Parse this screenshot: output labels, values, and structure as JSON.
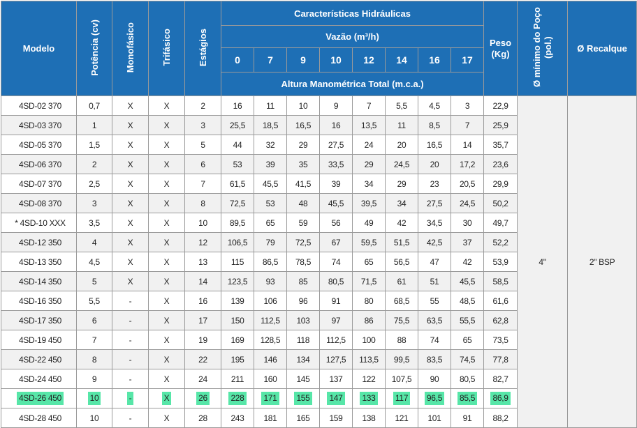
{
  "headers": {
    "modelo": "Modelo",
    "potencia": "Potência (cv)",
    "monofasico": "Monofásico",
    "trifasico": "Trifásico",
    "estagios": "Estágios",
    "caracteristicas": "Características Hidráulicas",
    "vazao": "Vazão (m³/h)",
    "flows": [
      "0",
      "7",
      "9",
      "10",
      "12",
      "14",
      "16",
      "17"
    ],
    "altura": "Altura Manométrica Total (m.c.a.)",
    "peso_l1": "Peso",
    "peso_l2": "(Kg)",
    "poco_l1": "Ø mínimo do Poço",
    "poco_l2": "(pol.)",
    "recalque": "Ø Recalque"
  },
  "merged": {
    "poco": "4\"",
    "recalque": "2\" BSP"
  },
  "highlight_color": "#57e6a8",
  "header_color": "#1e6fb5",
  "rows": [
    {
      "model": "4SD-02 370",
      "cv": "0,7",
      "mono": "X",
      "tri": "X",
      "stages": "2",
      "h": [
        "16",
        "11",
        "10",
        "9",
        "7",
        "5,5",
        "4,5",
        "3"
      ],
      "peso": "22,9"
    },
    {
      "model": "4SD-03 370",
      "cv": "1",
      "mono": "X",
      "tri": "X",
      "stages": "3",
      "h": [
        "25,5",
        "18,5",
        "16,5",
        "16",
        "13,5",
        "11",
        "8,5",
        "7"
      ],
      "peso": "25,9"
    },
    {
      "model": "4SD-05 370",
      "cv": "1,5",
      "mono": "X",
      "tri": "X",
      "stages": "5",
      "h": [
        "44",
        "32",
        "29",
        "27,5",
        "24",
        "20",
        "16,5",
        "14"
      ],
      "peso": "35,7"
    },
    {
      "model": "4SD-06 370",
      "cv": "2",
      "mono": "X",
      "tri": "X",
      "stages": "6",
      "h": [
        "53",
        "39",
        "35",
        "33,5",
        "29",
        "24,5",
        "20",
        "17,2"
      ],
      "peso": "23,6"
    },
    {
      "model": "4SD-07 370",
      "cv": "2,5",
      "mono": "X",
      "tri": "X",
      "stages": "7",
      "h": [
        "61,5",
        "45,5",
        "41,5",
        "39",
        "34",
        "29",
        "23",
        "20,5"
      ],
      "peso": "29,9"
    },
    {
      "model": "4SD-08 370",
      "cv": "3",
      "mono": "X",
      "tri": "X",
      "stages": "8",
      "h": [
        "72,5",
        "53",
        "48",
        "45,5",
        "39,5",
        "34",
        "27,5",
        "24,5"
      ],
      "peso": "50,2"
    },
    {
      "model": "* 4SD-10 XXX",
      "cv": "3,5",
      "mono": "X",
      "tri": "X",
      "stages": "10",
      "h": [
        "89,5",
        "65",
        "59",
        "56",
        "49",
        "42",
        "34,5",
        "30"
      ],
      "peso": "49,7"
    },
    {
      "model": "4SD-12 350",
      "cv": "4",
      "mono": "X",
      "tri": "X",
      "stages": "12",
      "h": [
        "106,5",
        "79",
        "72,5",
        "67",
        "59,5",
        "51,5",
        "42,5",
        "37"
      ],
      "peso": "52,2"
    },
    {
      "model": "4SD-13 350",
      "cv": "4,5",
      "mono": "X",
      "tri": "X",
      "stages": "13",
      "h": [
        "115",
        "86,5",
        "78,5",
        "74",
        "65",
        "56,5",
        "47",
        "42"
      ],
      "peso": "53,9"
    },
    {
      "model": "4SD-14 350",
      "cv": "5",
      "mono": "X",
      "tri": "X",
      "stages": "14",
      "h": [
        "123,5",
        "93",
        "85",
        "80,5",
        "71,5",
        "61",
        "51",
        "45,5"
      ],
      "peso": "58,5"
    },
    {
      "model": "4SD-16 350",
      "cv": "5,5",
      "mono": "-",
      "tri": "X",
      "stages": "16",
      "h": [
        "139",
        "106",
        "96",
        "91",
        "80",
        "68,5",
        "55",
        "48,5"
      ],
      "peso": "61,6"
    },
    {
      "model": "4SD-17 350",
      "cv": "6",
      "mono": "-",
      "tri": "X",
      "stages": "17",
      "h": [
        "150",
        "112,5",
        "103",
        "97",
        "86",
        "75,5",
        "63,5",
        "55,5"
      ],
      "peso": "62,8"
    },
    {
      "model": "4SD-19 450",
      "cv": "7",
      "mono": "-",
      "tri": "X",
      "stages": "19",
      "h": [
        "169",
        "128,5",
        "118",
        "112,5",
        "100",
        "88",
        "74",
        "65"
      ],
      "peso": "73,5"
    },
    {
      "model": "4SD-22 450",
      "cv": "8",
      "mono": "-",
      "tri": "X",
      "stages": "22",
      "h": [
        "195",
        "146",
        "134",
        "127,5",
        "113,5",
        "99,5",
        "83,5",
        "74,5"
      ],
      "peso": "77,8"
    },
    {
      "model": "4SD-24 450",
      "cv": "9",
      "mono": "-",
      "tri": "X",
      "stages": "24",
      "h": [
        "211",
        "160",
        "145",
        "137",
        "122",
        "107,5",
        "90",
        "80,5"
      ],
      "peso": "82,7"
    },
    {
      "model": "4SD-26 450",
      "cv": "10",
      "mono": "-",
      "tri": "X",
      "stages": "26",
      "h": [
        "228",
        "171",
        "155",
        "147",
        "133",
        "117",
        "96,5",
        "85,5"
      ],
      "peso": "86,9",
      "highlighted": true
    },
    {
      "model": "4SD-28 450",
      "cv": "10",
      "mono": "-",
      "tri": "X",
      "stages": "28",
      "h": [
        "243",
        "181",
        "165",
        "159",
        "138",
        "121",
        "101",
        "91"
      ],
      "peso": "88,2"
    }
  ]
}
